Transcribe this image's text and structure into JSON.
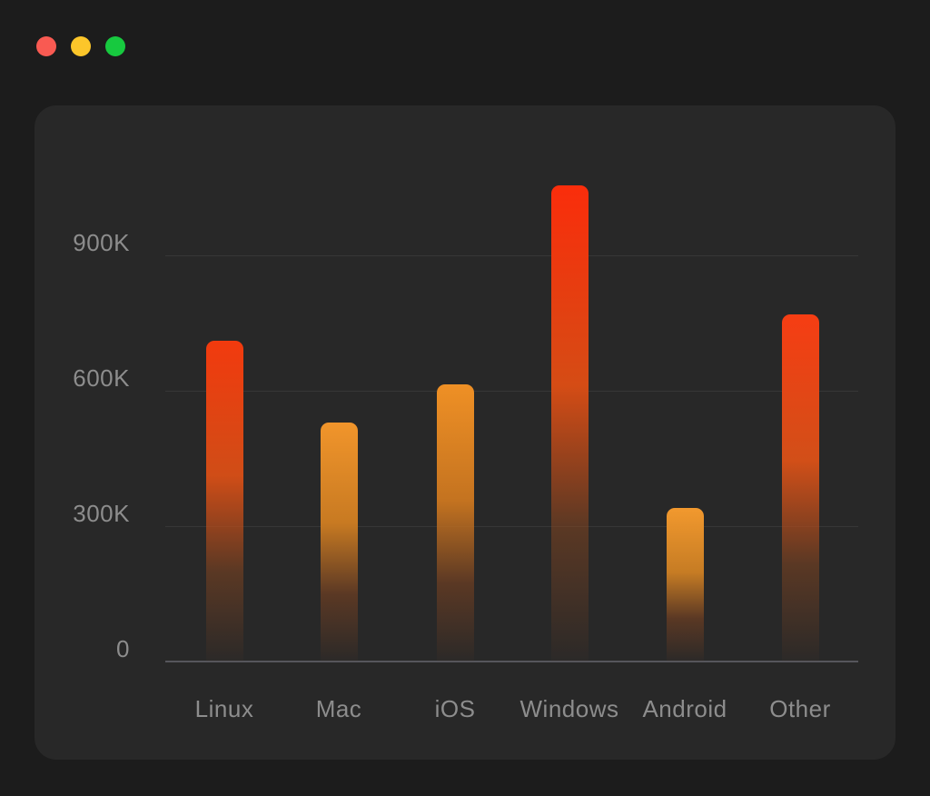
{
  "window": {
    "background": "#1c1c1c",
    "card_background": "#282828",
    "controls": [
      {
        "name": "close",
        "color": "#f95a52"
      },
      {
        "name": "minimize",
        "color": "#fcc62a"
      },
      {
        "name": "maximize",
        "color": "#17c93f"
      }
    ]
  },
  "chart_data": {
    "type": "bar",
    "title": "",
    "xlabel": "",
    "ylabel": "",
    "categories": [
      "Linux",
      "Mac",
      "iOS",
      "Windows",
      "Android",
      "Other"
    ],
    "values": [
      710000,
      530000,
      615000,
      1055000,
      340000,
      770000
    ],
    "values_k": [
      710,
      530,
      615,
      1055,
      340,
      770
    ],
    "ylim": [
      0,
      1100000
    ],
    "yticks": [
      {
        "label": "900K",
        "value_k": 900
      },
      {
        "label": "600K",
        "value_k": 600
      },
      {
        "label": "300K",
        "value_k": 300
      },
      {
        "label": "0",
        "value_k": 0
      }
    ],
    "grid": "horizontal",
    "legend": "none",
    "axis_label_color": "#8d8d8d",
    "bar_colors": [
      {
        "top": "#f23a0e",
        "mid": "#d04d17"
      },
      {
        "top": "#f1952b",
        "mid": "#c87a22"
      },
      {
        "top": "#ef9025",
        "mid": "#c47320"
      },
      {
        "top": "#fa2d0b",
        "mid": "#d54c15"
      },
      {
        "top": "#f2992e",
        "mid": "#c67c24"
      },
      {
        "top": "#f63d13",
        "mid": "#d24f18"
      }
    ]
  }
}
